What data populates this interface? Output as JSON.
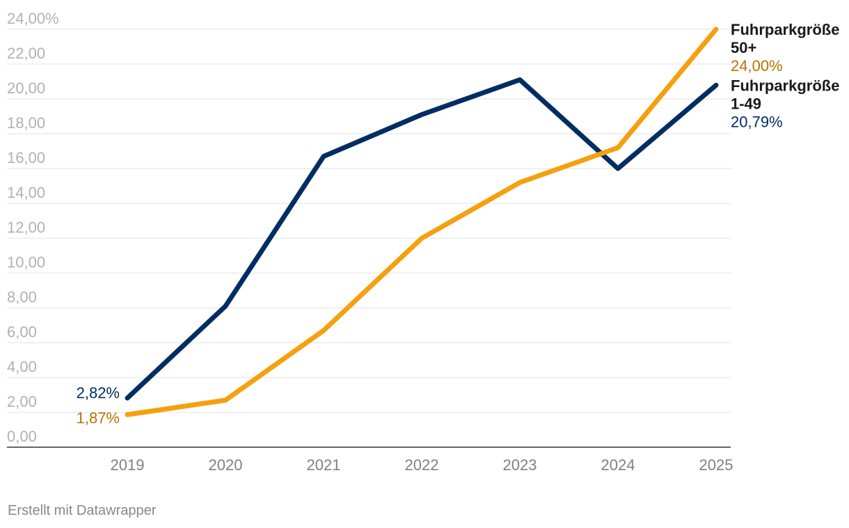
{
  "chart_data": {
    "type": "line",
    "x": [
      "2019",
      "2020",
      "2021",
      "2022",
      "2023",
      "2024",
      "2025"
    ],
    "ylim": [
      0,
      24
    ],
    "y_ticks": [
      "0,00",
      "2,00",
      "4,00",
      "6,00",
      "8,00",
      "10,00",
      "12,00",
      "14,00",
      "16,00",
      "18,00",
      "20,00",
      "22,00",
      "24,00%"
    ],
    "grid": true,
    "series": [
      {
        "name_lines": [
          "Fuhrparkgröße",
          "1-49"
        ],
        "color": "#002d62",
        "values": [
          2.82,
          8.1,
          16.7,
          19.1,
          21.1,
          16.0,
          20.79
        ],
        "start_label": "2,82%",
        "end_label": "20,79%",
        "label_color": "#002d62"
      },
      {
        "name_lines": [
          "Fuhrparkgröße",
          "50+"
        ],
        "color": "#f5a00f",
        "values": [
          1.87,
          2.7,
          6.7,
          12.0,
          15.2,
          17.2,
          24.0
        ],
        "start_label": "1,87%",
        "end_label": "24,00%",
        "label_color": "#b97200"
      }
    ]
  },
  "footer": {
    "credit": "Erstellt mit Datawrapper"
  }
}
